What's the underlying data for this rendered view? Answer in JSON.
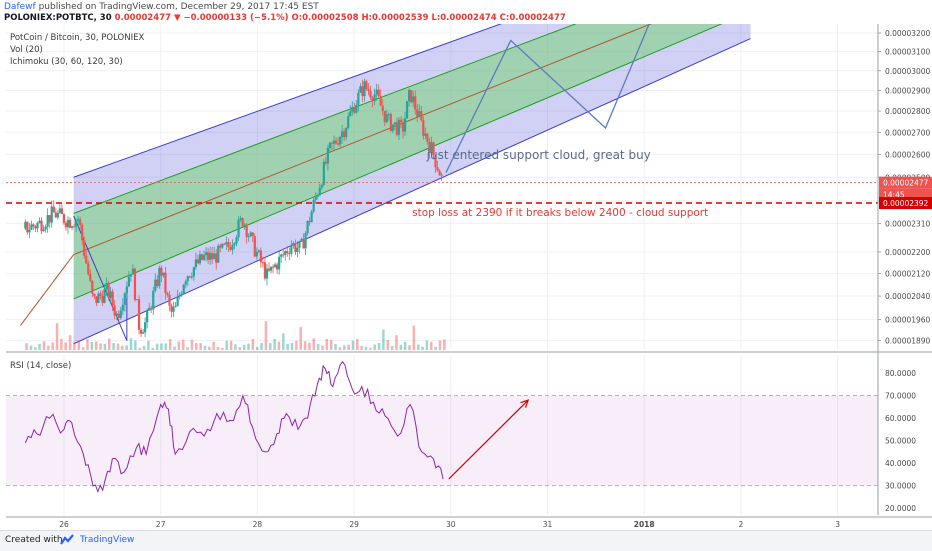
{
  "header": {
    "author": "Dafewf",
    "published_text": "published on TradingView.com, December 29, 2017 17:45 EST",
    "symbol_line": "POLONIEX:POTBTC, 30",
    "ohlc": "0.00002477 ▼ −0.00000133 (−5.1%) O:0.00002508 H:0.00002539 L:0.00002474 C:0.00002477"
  },
  "legend": {
    "title": "PotCoin / Bitcoin, 30, POLONIEX",
    "vol": "Vol (20)",
    "ichimoku": "Ichimoku (30, 60, 120, 30)",
    "rsi": "RSI (14, close)"
  },
  "annotations": {
    "support": "just entered support cloud, great buy",
    "stop_loss": "stop loss at 2390 if it breaks below 2400 - cloud support"
  },
  "price_labels": {
    "last": "0.00002477",
    "timer": "14:45",
    "stop": "0.00002392"
  },
  "footer": {
    "created_with": "Created with",
    "brand": "TradingView"
  },
  "colors": {
    "up": "#26a69a",
    "down": "#ef5350",
    "channel_outer": "#3d3dcc",
    "channel_inner": "#1e9e1e",
    "rsi_line": "#8e24aa",
    "stop_line": "#d50000",
    "forecast": "#5b7bbf"
  },
  "chart_data": [
    {
      "type": "candlestick",
      "title": "PotCoin / Bitcoin, 30, POLONIEX",
      "x_ticks": [
        "26",
        "27",
        "28",
        "29",
        "30",
        "31",
        "2018",
        "2",
        "3"
      ],
      "y_ticks": [
        1.89e-05,
        1.96e-05,
        2.04e-05,
        2.12e-05,
        2.2e-05,
        2.31e-05,
        2.4e-05,
        2.5e-05,
        2.6e-05,
        2.7e-05,
        2.8e-05,
        2.9e-05,
        3e-05,
        3.1e-05,
        3.2e-05
      ],
      "y_tick_labels": [
        "0.00001890",
        "0.00001960",
        "0.00002040",
        "0.00002120",
        "0.00002200",
        "0.00002310",
        "0.00002400",
        "0.00002500",
        "0.00002600",
        "0.00002700",
        "0.00002800",
        "0.00002900",
        "0.00003000",
        "0.00003100",
        "0.00003200"
      ],
      "close_path": [
        [
          25.6,
          2.29e-05
        ],
        [
          25.75,
          2.31e-05
        ],
        [
          25.9,
          2.35e-05
        ],
        [
          26.05,
          2.32e-05
        ],
        [
          26.15,
          2.33e-05
        ],
        [
          26.2,
          2.22e-05
        ],
        [
          26.3,
          2.02e-05
        ],
        [
          26.45,
          2.06e-05
        ],
        [
          26.55,
          1.97e-05
        ],
        [
          26.7,
          2.15e-05
        ],
        [
          26.78,
          1.93e-05
        ],
        [
          26.85,
          1.95e-05
        ],
        [
          27.0,
          2.14e-05
        ],
        [
          27.1,
          1.98e-05
        ],
        [
          27.15,
          1.99e-05
        ],
        [
          27.25,
          2.11e-05
        ],
        [
          27.45,
          2.18e-05
        ],
        [
          27.55,
          2.18e-05
        ],
        [
          27.7,
          2.22e-05
        ],
        [
          27.85,
          2.33e-05
        ],
        [
          27.95,
          2.23e-05
        ],
        [
          28.1,
          2.11e-05
        ],
        [
          28.25,
          2.18e-05
        ],
        [
          28.35,
          2.23e-05
        ],
        [
          28.45,
          2.21e-05
        ],
        [
          28.6,
          2.41e-05
        ],
        [
          28.75,
          2.62e-05
        ],
        [
          28.9,
          2.72e-05
        ],
        [
          29.0,
          2.83e-05
        ],
        [
          29.1,
          2.92e-05
        ],
        [
          29.22,
          2.88e-05
        ],
        [
          29.35,
          2.75e-05
        ],
        [
          29.5,
          2.71e-05
        ],
        [
          29.58,
          2.89e-05
        ],
        [
          29.7,
          2.73e-05
        ],
        [
          29.82,
          2.6e-05
        ],
        [
          29.92,
          2.48e-05
        ]
      ],
      "last_close": 2.477e-05,
      "stop_loss": 2.392e-05,
      "channel": {
        "center_start": [
          26.1,
          2.19e-05
        ],
        "center_end": [
          33.1,
          3.48e-05
        ],
        "inner_offset": 1.6e-06,
        "outer_offset": 3.1e-06
      },
      "forecast_path": [
        [
          29.95,
          2.52e-05
        ],
        [
          30.62,
          3.16e-05
        ],
        [
          31.6,
          2.72e-05
        ],
        [
          32.15,
          3.38e-05
        ]
      ]
    },
    {
      "type": "line",
      "title": "RSI (14, close)",
      "y_ticks": [
        20,
        30,
        40,
        50,
        60,
        70,
        80
      ],
      "y_tick_labels": [
        "20.0000",
        "30.0000",
        "40.0000",
        "50.0000",
        "60.0000",
        "70.0000",
        "80.0000"
      ],
      "ylim": [
        17,
        88
      ],
      "band": [
        30,
        70
      ],
      "values": [
        [
          25.6,
          49
        ],
        [
          25.72,
          53
        ],
        [
          25.85,
          60
        ],
        [
          26.0,
          55
        ],
        [
          26.08,
          58
        ],
        [
          26.2,
          44
        ],
        [
          26.3,
          30
        ],
        [
          26.4,
          28
        ],
        [
          26.5,
          42
        ],
        [
          26.62,
          36
        ],
        [
          26.75,
          47
        ],
        [
          26.85,
          44
        ],
        [
          27.0,
          66
        ],
        [
          27.08,
          64
        ],
        [
          27.15,
          44
        ],
        [
          27.3,
          54
        ],
        [
          27.45,
          52
        ],
        [
          27.58,
          62
        ],
        [
          27.72,
          59
        ],
        [
          27.85,
          70
        ],
        [
          27.95,
          56
        ],
        [
          28.08,
          45
        ],
        [
          28.2,
          53
        ],
        [
          28.3,
          62
        ],
        [
          28.42,
          55
        ],
        [
          28.52,
          60
        ],
        [
          28.62,
          75
        ],
        [
          28.7,
          82
        ],
        [
          28.78,
          74
        ],
        [
          28.88,
          85
        ],
        [
          28.98,
          73
        ],
        [
          29.08,
          74
        ],
        [
          29.2,
          67
        ],
        [
          29.32,
          61
        ],
        [
          29.45,
          52
        ],
        [
          29.58,
          66
        ],
        [
          29.7,
          45
        ],
        [
          29.82,
          42
        ],
        [
          29.92,
          33
        ]
      ],
      "arrow": [
        [
          29.98,
          33
        ],
        [
          30.8,
          68
        ]
      ]
    }
  ]
}
